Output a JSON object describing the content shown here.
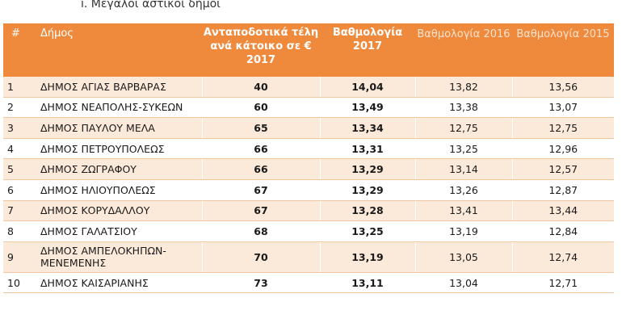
{
  "section_title": "i. Μεγάλοι αστικοί δήμοι",
  "table": {
    "headers": {
      "num": "#",
      "municipality": "Δήμος",
      "fees": "Ανταποδοτικά τέλη ανά κάτοικο σε € 2017",
      "score_2017": "Βαθμολογία 2017",
      "score_2016": "Βαθμολογία 2016",
      "score_2015": "Βαθμολογία 2015"
    },
    "rows": [
      {
        "num": "1",
        "name": "ΔΗΜΟΣ ΑΓΙΑΣ ΒΑΡΒΑΡΑΣ",
        "fee": "40",
        "s2017": "14,04",
        "s2016": "13,82",
        "s2015": "13,56"
      },
      {
        "num": "2",
        "name": "ΔΗΜΟΣ ΝΕΑΠΟΛΗΣ-ΣΥΚΕΩΝ",
        "fee": "60",
        "s2017": "13,49",
        "s2016": "13,38",
        "s2015": "13,07"
      },
      {
        "num": "3",
        "name": "ΔΗΜΟΣ ΠΑΥΛΟΥ ΜΕΛΑ",
        "fee": "65",
        "s2017": "13,34",
        "s2016": "12,75",
        "s2015": "12,75"
      },
      {
        "num": "4",
        "name": "ΔΗΜΟΣ ΠΕΤΡΟΥΠΟΛΕΩΣ",
        "fee": "66",
        "s2017": "13,31",
        "s2016": "13,25",
        "s2015": "12,96"
      },
      {
        "num": "5",
        "name": "ΔΗΜΟΣ ΖΩΓΡΑΦΟΥ",
        "fee": "66",
        "s2017": "13,29",
        "s2016": "13,14",
        "s2015": "12,57"
      },
      {
        "num": "6",
        "name": "ΔΗΜΟΣ ΗΛΙΟΥΠΟΛΕΩΣ",
        "fee": "67",
        "s2017": "13,29",
        "s2016": "13,26",
        "s2015": "12,87"
      },
      {
        "num": "7",
        "name": "ΔΗΜΟΣ ΚΟΡΥΔΑΛΛΟΥ",
        "fee": "67",
        "s2017": "13,28",
        "s2016": "13,41",
        "s2015": "13,44"
      },
      {
        "num": "8",
        "name": "ΔΗΜΟΣ ΓΑΛΑΤΣΙΟΥ",
        "fee": "68",
        "s2017": "13,25",
        "s2016": "13,19",
        "s2015": "12,84"
      },
      {
        "num": "9",
        "name": "ΔΗΜΟΣ ΑΜΠΕΛΟΚΗΠΩΝ-ΜΕΝΕΜΕΝΗΣ",
        "fee": "70",
        "s2017": "13,19",
        "s2016": "13,05",
        "s2015": "12,74"
      },
      {
        "num": "10",
        "name": "ΔΗΜΟΣ ΚΑΙΣΑΡΙΑΝΗΣ",
        "fee": "73",
        "s2017": "13,11",
        "s2016": "13,04",
        "s2015": "12,71"
      }
    ]
  },
  "colors": {
    "header_bg": "#ef8a3c",
    "row_alt_bg": "#fbe9da",
    "row_border": "#f0c7a0"
  }
}
